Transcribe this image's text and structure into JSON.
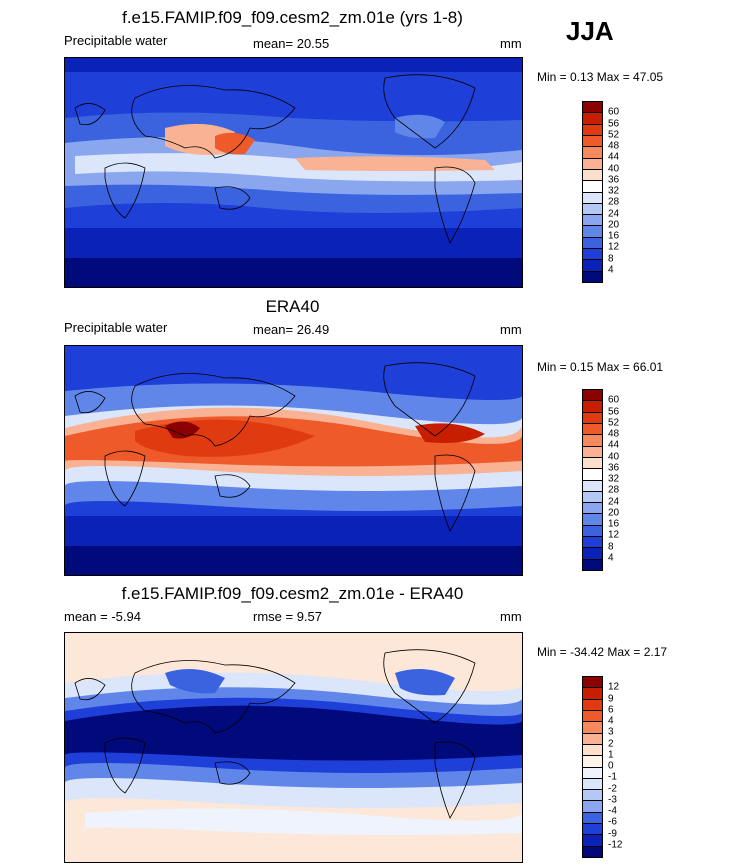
{
  "season": "JJA",
  "panels": [
    {
      "title": "f.e15.FAMIP.f09_f09.cesm2_zm.01e (yrs 1-8)",
      "left_label": "Precipitable water",
      "center_label": "mean=  20.55",
      "units": "mm",
      "minmax": "Min =   0.13 Max =  47.05",
      "colorbar": {
        "labels": [
          "60",
          "56",
          "52",
          "48",
          "44",
          "40",
          "36",
          "32",
          "28",
          "24",
          "20",
          "16",
          "12",
          "8",
          "4"
        ],
        "colors": [
          "#8b0000",
          "#c81e00",
          "#e03a10",
          "#ee5a2a",
          "#f68a5e",
          "#f9b394",
          "#fde0cc",
          "#ffffff",
          "#dbe6fb",
          "#b3c8f4",
          "#8aa6ee",
          "#5f86e8",
          "#3b63e0",
          "#1e3fd8",
          "#0a22b8",
          "#000a7a"
        ]
      }
    },
    {
      "title": "ERA40",
      "left_label": "Precipitable water",
      "center_label": "mean=  26.49",
      "units": "mm",
      "minmax": "Min =   0.15 Max =  66.01",
      "colorbar": {
        "labels": [
          "60",
          "56",
          "52",
          "48",
          "44",
          "40",
          "36",
          "32",
          "28",
          "24",
          "20",
          "16",
          "12",
          "8",
          "4"
        ],
        "colors": [
          "#8b0000",
          "#c81e00",
          "#e03a10",
          "#ee5a2a",
          "#f68a5e",
          "#f9b394",
          "#fde0cc",
          "#ffffff",
          "#dbe6fb",
          "#b3c8f4",
          "#8aa6ee",
          "#5f86e8",
          "#3b63e0",
          "#1e3fd8",
          "#0a22b8",
          "#000a7a"
        ]
      }
    },
    {
      "title": "f.e15.FAMIP.f09_f09.cesm2_zm.01e - ERA40",
      "left_label": "mean =   -5.94",
      "center_label": "rmse =    9.57",
      "units": "mm",
      "minmax": "Min = -34.42 Max =    2.17",
      "colorbar": {
        "labels": [
          "12",
          "9",
          "6",
          "4",
          "3",
          "2",
          "1",
          "0",
          "-1",
          "-2",
          "-3",
          "-4",
          "-6",
          "-9",
          "-12"
        ],
        "colors": [
          "#8b0000",
          "#c81e00",
          "#e03a10",
          "#ee5a2a",
          "#f68a5e",
          "#f9b394",
          "#fde0cc",
          "#fff3ea",
          "#eef3fd",
          "#dbe6fb",
          "#b3c8f4",
          "#8aa6ee",
          "#3b63e0",
          "#1e3fd8",
          "#0a22b8",
          "#00087a"
        ]
      }
    }
  ]
}
